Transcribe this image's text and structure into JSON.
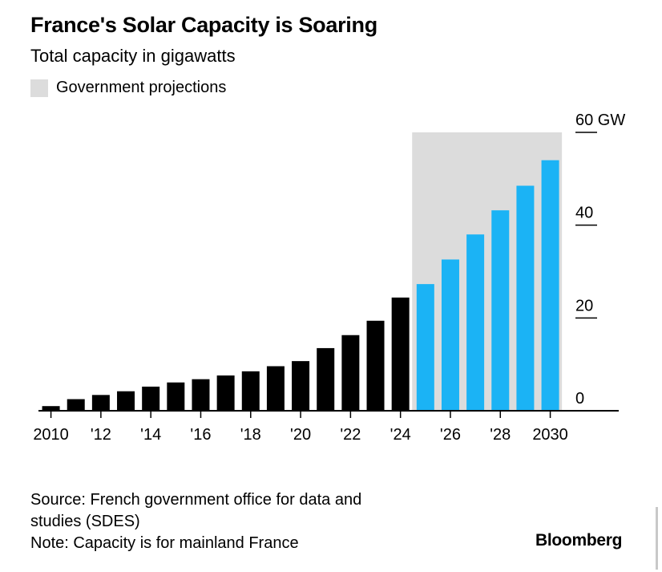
{
  "chart_data": {
    "type": "bar",
    "title": "France's Solar Capacity is Soaring",
    "subtitle": "Total capacity in gigawatts",
    "legend": [
      {
        "label": "Government projections",
        "color": "#dcdcdc"
      }
    ],
    "categories": [
      "2010",
      "2011",
      "2012",
      "2013",
      "2014",
      "2015",
      "2016",
      "2017",
      "2018",
      "2019",
      "2020",
      "2021",
      "2022",
      "2023",
      "2024",
      "2025",
      "2026",
      "2027",
      "2028",
      "2029",
      "2030"
    ],
    "values": [
      1,
      2.5,
      3.4,
      4.2,
      5.2,
      6.1,
      6.8,
      7.6,
      8.5,
      9.6,
      10.7,
      13.5,
      16.3,
      19.4,
      24.4,
      27.3,
      32.6,
      38,
      43.2,
      48.5,
      54
    ],
    "projected_from": "2025",
    "projection_region": {
      "start": "2025",
      "end": "2030"
    },
    "colors": {
      "actual": "#000000",
      "projected": "#1bb3f5",
      "projection_band": "#dcdcdc"
    },
    "ylim": [
      0,
      60
    ],
    "y_ticks": [
      {
        "value": 0,
        "label": "0"
      },
      {
        "value": 20,
        "label": "20"
      },
      {
        "value": 40,
        "label": "40"
      },
      {
        "value": 60,
        "label": "60 GW"
      }
    ],
    "x_ticks": [
      {
        "value": "2010",
        "label": "2010"
      },
      {
        "value": "2012",
        "label": "'12"
      },
      {
        "value": "2014",
        "label": "'14"
      },
      {
        "value": "2016",
        "label": "'16"
      },
      {
        "value": "2018",
        "label": "'18"
      },
      {
        "value": "2020",
        "label": "'20"
      },
      {
        "value": "2022",
        "label": "'22"
      },
      {
        "value": "2024",
        "label": "'24"
      },
      {
        "value": "2026",
        "label": "'26"
      },
      {
        "value": "2028",
        "label": "'28"
      },
      {
        "value": "2030",
        "label": "2030"
      }
    ],
    "xlabel": "",
    "ylabel": "",
    "grid": false
  },
  "footer": {
    "source_line1": "Source: French government office for data and",
    "source_line2": "studies (SDES)",
    "note": "Note: Capacity is for mainland France"
  },
  "brand": "Bloomberg"
}
